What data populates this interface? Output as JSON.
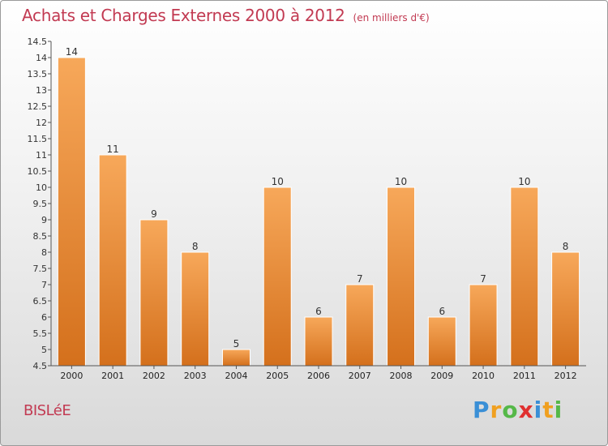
{
  "title": "Achats et Charges Externes 2000 à 2012",
  "subtitle": "(en milliers d'€)",
  "commune": "BISLéE",
  "logo": {
    "letters": [
      "P",
      "r",
      "o",
      "x",
      "i",
      "t",
      "i"
    ],
    "colors": [
      "#3a8fd6",
      "#f0a020",
      "#55b848",
      "#e03030",
      "#3a8fd6",
      "#f0a020",
      "#55b848"
    ]
  },
  "colors": {
    "bar_top": "#f7a85a",
    "bar_bottom": "#d4701c",
    "title": "#c23a52"
  },
  "chart_data": {
    "type": "bar",
    "title": "Achats et Charges Externes 2000 à 2012",
    "subtitle": "(en milliers d'€)",
    "categories": [
      "2000",
      "2001",
      "2002",
      "2003",
      "2004",
      "2005",
      "2006",
      "2007",
      "2008",
      "2009",
      "2010",
      "2011",
      "2012"
    ],
    "values": [
      14,
      11,
      9,
      8,
      5,
      10,
      6,
      7,
      10,
      6,
      7,
      10,
      8
    ],
    "ylim": [
      4.5,
      14.5
    ],
    "ytick_step": 0.5,
    "yticks": [
      "4.5",
      "5",
      "5.5",
      "6",
      "6.5",
      "7",
      "7.5",
      "8",
      "8.5",
      "9",
      "9.5",
      "10",
      "10.5",
      "11",
      "11.5",
      "12",
      "12.5",
      "13",
      "13.5",
      "14",
      "14.5"
    ],
    "grid": false,
    "legend": "none"
  }
}
